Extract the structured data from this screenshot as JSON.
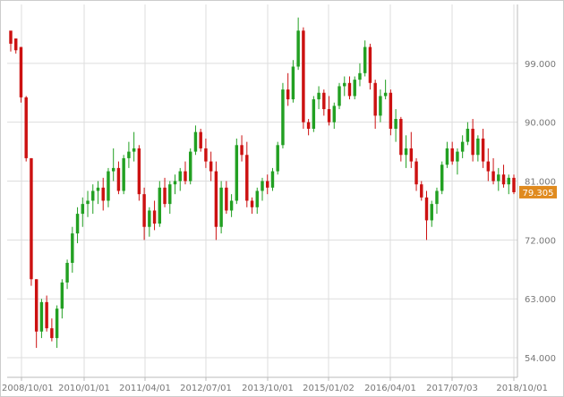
{
  "chart_data": {
    "type": "candlestick",
    "title": "",
    "xlabel": "",
    "ylabel": "",
    "ylim": [
      51,
      108
    ],
    "y_axis_position": "right",
    "grid": true,
    "y_ticks": [
      "54.000",
      "63.000",
      "72.000",
      "81.000",
      "90.000",
      "99.000"
    ],
    "y_tick_values": [
      54,
      63,
      72,
      81,
      90,
      99
    ],
    "x_ticks": [
      "2008/10/01",
      "2010/01/01",
      "2011/04/01",
      "2012/07/01",
      "2013/10/01",
      "2015/01/02",
      "2016/04/01",
      "2017/07/03",
      "2018/10/01"
    ],
    "last_value": 79.305,
    "last_value_label": "79.305",
    "colors": {
      "up": "#22a022",
      "down": "#cc1111",
      "grid": "#dddddd",
      "label_bg": "#e08a1e",
      "tick_text": "#777777",
      "axis": "#bbbbbb"
    },
    "ohlc": [
      [
        104,
        103.5,
        100.8,
        102
      ],
      [
        102.8,
        102.8,
        100.5,
        101
      ],
      [
        101.5,
        101.5,
        93,
        93.8
      ],
      [
        93.8,
        94,
        84,
        84.5
      ],
      [
        84.5,
        84.5,
        65,
        66
      ],
      [
        66,
        66,
        55.5,
        58
      ],
      [
        58,
        63,
        57,
        62.5
      ],
      [
        62.5,
        63.5,
        58,
        58.5
      ],
      [
        58.5,
        60,
        56.5,
        57
      ],
      [
        57,
        62,
        55.5,
        61.5
      ],
      [
        61.5,
        66,
        60,
        65.5
      ],
      [
        65.5,
        69,
        64.5,
        68.5
      ],
      [
        68.5,
        74,
        67,
        73
      ],
      [
        73,
        77,
        71.5,
        76
      ],
      [
        76,
        78.5,
        74,
        77.5
      ],
      [
        77.5,
        79.5,
        75.5,
        78
      ],
      [
        78,
        80.5,
        76,
        79.5
      ],
      [
        79.5,
        81,
        77.5,
        80
      ],
      [
        80,
        81.5,
        76.5,
        78
      ],
      [
        78,
        83,
        77,
        82.5
      ],
      [
        82.5,
        86,
        81,
        83
      ],
      [
        83,
        84,
        79,
        79.5
      ],
      [
        79.5,
        85,
        79,
        84.5
      ],
      [
        84.5,
        87,
        83,
        85.5
      ],
      [
        85.5,
        88.5,
        84,
        86
      ],
      [
        86,
        86.5,
        78,
        79
      ],
      [
        79,
        80,
        72,
        74
      ],
      [
        74,
        77,
        72.5,
        76.5
      ],
      [
        76.5,
        78,
        73.5,
        74.5
      ],
      [
        74.5,
        81,
        74,
        80
      ],
      [
        80,
        81.5,
        77,
        77.5
      ],
      [
        77.5,
        81,
        76,
        80.5
      ],
      [
        80.5,
        82,
        79,
        81
      ],
      [
        81,
        83,
        79.5,
        82.5
      ],
      [
        82.5,
        84,
        80.5,
        81
      ],
      [
        81,
        86,
        80.5,
        85.5
      ],
      [
        85.5,
        89.5,
        85,
        88.5
      ],
      [
        88.5,
        89,
        85.5,
        86
      ],
      [
        86,
        87.5,
        83,
        84
      ],
      [
        84,
        85.5,
        81,
        82.5
      ],
      [
        82.5,
        84,
        72,
        74
      ],
      [
        74,
        81,
        73,
        80
      ],
      [
        80,
        81,
        76,
        76.5
      ],
      [
        76.5,
        79,
        75.5,
        78
      ],
      [
        78,
        87.5,
        77.5,
        86.5
      ],
      [
        86.5,
        88,
        84,
        85
      ],
      [
        85,
        87,
        77,
        78
      ],
      [
        78,
        78.5,
        76,
        77
      ],
      [
        77,
        80,
        76,
        79.5
      ],
      [
        79.5,
        81.5,
        78,
        81
      ],
      [
        81,
        82,
        79,
        80
      ],
      [
        80,
        83,
        79.5,
        82.5
      ],
      [
        82.5,
        87,
        82,
        86.5
      ],
      [
        86.5,
        96,
        86,
        95
      ],
      [
        95,
        97.5,
        92.5,
        93.5
      ],
      [
        93.5,
        99.5,
        93,
        98.5
      ],
      [
        98.5,
        106,
        98,
        104
      ],
      [
        104,
        104.5,
        89,
        90
      ],
      [
        90,
        90.5,
        88,
        89
      ],
      [
        89,
        94,
        88.5,
        93.5
      ],
      [
        93.5,
        95.5,
        92,
        94.5
      ],
      [
        94.5,
        95,
        91,
        92
      ],
      [
        92,
        94,
        89.5,
        90
      ],
      [
        90,
        93,
        89,
        92.5
      ],
      [
        92.5,
        96,
        92,
        95.5
      ],
      [
        95.5,
        97,
        94,
        96
      ],
      [
        96,
        97,
        93.5,
        94
      ],
      [
        94,
        97,
        93.5,
        96.5
      ],
      [
        96.5,
        99,
        95.5,
        97.5
      ],
      [
        97.5,
        102.5,
        97,
        101.5
      ],
      [
        101.5,
        102,
        95,
        96
      ],
      [
        96,
        96.5,
        89,
        91
      ],
      [
        91,
        95,
        90,
        94
      ],
      [
        94,
        96.5,
        93.5,
        94.5
      ],
      [
        94.5,
        95,
        88,
        89
      ],
      [
        89,
        92,
        87,
        90.5
      ],
      [
        90.5,
        90.8,
        84,
        85
      ],
      [
        85,
        88,
        83,
        86
      ],
      [
        86,
        88.5,
        83,
        84
      ],
      [
        84,
        84.5,
        79.5,
        80.5
      ],
      [
        80.5,
        81,
        78,
        78.5
      ],
      [
        78.5,
        79.5,
        72,
        75
      ],
      [
        75,
        78,
        74,
        77.5
      ],
      [
        77.5,
        80,
        76,
        79.5
      ],
      [
        79.5,
        84,
        79,
        83.5
      ],
      [
        83.5,
        87,
        83,
        86
      ],
      [
        86,
        87,
        83.5,
        84
      ],
      [
        84,
        86,
        82,
        85.5
      ],
      [
        85.5,
        88,
        84.5,
        87
      ],
      [
        87,
        90,
        86.5,
        89
      ],
      [
        89,
        90.5,
        84,
        85
      ],
      [
        85,
        88,
        84,
        87.5
      ],
      [
        87.5,
        89,
        83,
        84
      ],
      [
        84,
        86,
        81,
        82.5
      ],
      [
        82.5,
        84.5,
        80.5,
        81
      ],
      [
        81,
        83,
        79.5,
        82
      ],
      [
        82,
        83.5,
        80,
        80.5
      ],
      [
        80.5,
        82,
        79,
        81.5
      ],
      [
        81.5,
        82,
        79,
        79.3
      ]
    ]
  }
}
